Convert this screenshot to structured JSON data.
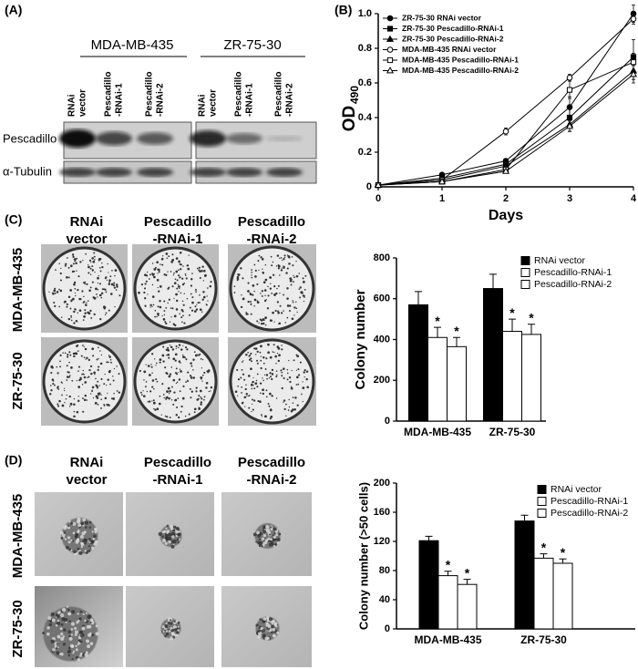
{
  "panel_labels": [
    "(A)",
    "(B)",
    "(C)",
    "(D)"
  ],
  "blot": {
    "groups": [
      "MDA-MB-435",
      "ZR-75-30"
    ],
    "lanes": [
      [
        "RNAi",
        "vector"
      ],
      [
        "Pescadillo",
        "-RNAi-1"
      ],
      [
        "Pescadillo",
        "-RNAi-2"
      ]
    ],
    "rows": [
      "Pescadillo",
      "α-Tubulin"
    ]
  },
  "colony_plates": {
    "columns": [
      [
        "RNAi",
        "vector"
      ],
      [
        "Pescadillo",
        "-RNAi-1"
      ],
      [
        "Pescadillo",
        "-RNAi-2"
      ]
    ],
    "rows": [
      "MDA-MB-435",
      "ZR-75-30"
    ]
  },
  "soft_agar": {
    "columns": [
      [
        "RNAi",
        "vector"
      ],
      [
        "Pescadillo",
        "-RNAi-1"
      ],
      [
        "Pescadillo",
        "-RNAi-2"
      ]
    ],
    "rows": [
      "MDA-MB-435",
      "ZR-75-30"
    ]
  },
  "chart_data": [
    {
      "type": "line",
      "ylabel": "OD",
      "ylabel_subscript": "490",
      "xlabel": "Days",
      "x": [
        0,
        1,
        2,
        3,
        4
      ],
      "xlim": [
        0,
        4
      ],
      "xticks": [
        0,
        1,
        2,
        3,
        4
      ],
      "ylim": [
        0,
        1
      ],
      "yticks": [
        0,
        0.2,
        0.4,
        0.6,
        0.8,
        {
          "value": 1,
          "label": "1.0"
        }
      ],
      "legend": "top-left",
      "series": [
        {
          "name": "ZR-75-30 RNAi vector",
          "color": "#000000",
          "marker": "circle",
          "filled": true,
          "values": [
            0.01,
            0.07,
            0.15,
            0.46,
            1.0
          ],
          "errors": [
            0.005,
            0.01,
            0.01,
            0.06,
            0.05
          ]
        },
        {
          "name": "ZR-75-30 Pescadillo-RNAi-1",
          "color": "#000000",
          "marker": "square",
          "filled": true,
          "values": [
            0.01,
            0.05,
            0.13,
            0.4,
            0.75
          ],
          "errors": [
            0.005,
            0.01,
            0.01,
            0.05,
            0.1
          ]
        },
        {
          "name": "ZR-75-30 Pescadillo-RNAi-2",
          "color": "#000000",
          "marker": "triangle",
          "filled": true,
          "values": [
            0.01,
            0.04,
            0.12,
            0.36,
            0.67
          ],
          "errors": [
            0.005,
            0.01,
            0.01,
            0.04,
            0.05
          ]
        },
        {
          "name": "MDA-MB-435 RNAi vector",
          "color": "#000000",
          "marker": "circle",
          "filled": false,
          "values": [
            0.01,
            0.04,
            0.32,
            0.63,
            0.97
          ],
          "errors": [
            0.005,
            0.01,
            0.02,
            0.02,
            0.03
          ]
        },
        {
          "name": "MDA-MB-435 Pescadillo-RNAi-1",
          "color": "#000000",
          "marker": "square",
          "filled": false,
          "values": [
            0.01,
            0.03,
            0.1,
            0.56,
            0.72
          ],
          "errors": [
            0.005,
            0.01,
            0.01,
            0.05,
            0.05
          ]
        },
        {
          "name": "MDA-MB-435 Pescadillo-RNAi-2",
          "color": "#000000",
          "marker": "triangle",
          "filled": false,
          "values": [
            0.01,
            0.03,
            0.09,
            0.35,
            0.65
          ],
          "errors": [
            0.005,
            0.01,
            0.01,
            0.03,
            0.05
          ]
        }
      ]
    },
    {
      "type": "bar",
      "ylabel": "Colony number",
      "categories": [
        "MDA-MB-435",
        "ZR-75-30"
      ],
      "ylim": [
        0,
        800
      ],
      "yticks": [
        0,
        200,
        400,
        600,
        800
      ],
      "legend": "top-right",
      "series": [
        {
          "name": "RNAi vector",
          "color": "#000000",
          "values": [
            570,
            650
          ],
          "errors": [
            65,
            70
          ]
        },
        {
          "name": "Pescadillo-RNAi-1",
          "color": "#ffffff",
          "values": [
            410,
            440
          ],
          "errors": [
            50,
            60
          ],
          "annotation": "*"
        },
        {
          "name": "Pescadillo-RNAi-2",
          "color": "#ffffff",
          "values": [
            365,
            425
          ],
          "errors": [
            45,
            50
          ],
          "annotation": "*"
        }
      ]
    },
    {
      "type": "bar",
      "ylabel": "Colony number (>50 cells)",
      "categories": [
        "MDA-MB-435",
        "ZR-75-30"
      ],
      "ylim": [
        0,
        200
      ],
      "yticks": [
        0,
        40,
        80,
        120,
        160,
        200
      ],
      "legend": "top-right",
      "series": [
        {
          "name": "RNAi vector",
          "color": "#000000",
          "values": [
            121,
            148
          ],
          "errors": [
            6,
            8
          ]
        },
        {
          "name": "Pescadillo-RNAi-1",
          "color": "#ffffff",
          "values": [
            73,
            97
          ],
          "errors": [
            6,
            6
          ],
          "annotation": "*"
        },
        {
          "name": "Pescadillo-RNAi-2",
          "color": "#ffffff",
          "values": [
            61,
            90
          ],
          "errors": [
            7,
            6
          ],
          "annotation": "*"
        }
      ]
    }
  ]
}
